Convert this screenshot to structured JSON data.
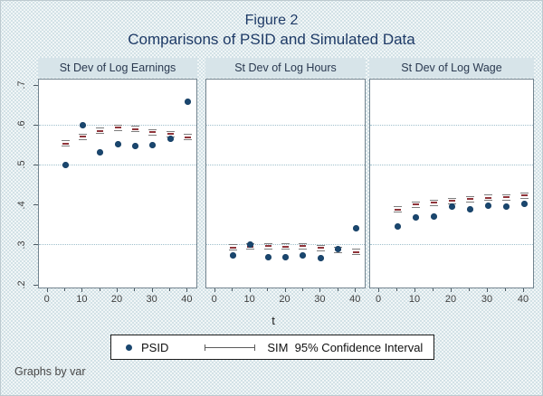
{
  "figure": {
    "title_line1": "Figure 2",
    "title_line2": "Comparisons of PSID and Simulated Data",
    "footer": "Graphs by var"
  },
  "legend": {
    "psid_label": "PSID",
    "sim_label": "SIM  95% Confidence Interval"
  },
  "colors": {
    "navy_dot": "#1a476f",
    "maroon_ci": "#90353b",
    "ci_cap_gray": "#7d7d7d",
    "background": "#eef3f5",
    "panel_header_bg": "#d7e4e9",
    "title_navy": "#1e3a66",
    "gridline": "#9fc0cc"
  },
  "chart_data": {
    "type": "scatter",
    "title": "Figure 2",
    "subtitle": "Comparisons of PSID and Simulated Data",
    "xlabel": "t",
    "ylabel": "",
    "xlim": [
      -2.5,
      42.5
    ],
    "ylim": [
      0.191,
      0.716
    ],
    "x_ticks": [
      0,
      10,
      20,
      30,
      40
    ],
    "x_minor_ticks": [
      5,
      15,
      25,
      35
    ],
    "y_ticks": [
      0.2,
      0.3,
      0.4,
      0.5,
      0.6,
      0.7
    ],
    "y_tick_labels": [
      ".2",
      ".3",
      ".4",
      ".5",
      ".6",
      ".7"
    ],
    "gridlines_y": [
      0.3,
      0.5,
      0.6
    ],
    "grid": "dotted horizontal",
    "legend_position": "bottom",
    "ci_halfwidth": 0.006,
    "x": [
      5,
      10,
      15,
      20,
      25,
      30,
      35,
      40
    ],
    "panels": [
      {
        "title": "St Dev of Log Earnings",
        "series": [
          {
            "name": "PSID",
            "values": [
              0.5,
              0.601,
              0.533,
              0.552,
              0.548,
              0.551,
              0.567,
              0.661
            ]
          },
          {
            "name": "SIM 95% CI",
            "values": [
              0.554,
              0.572,
              0.586,
              0.594,
              0.591,
              0.583,
              0.579,
              0.57
            ]
          }
        ]
      },
      {
        "title": "St Dev of Log Hours",
        "series": [
          {
            "name": "PSID",
            "values": [
              0.272,
              0.3,
              0.268,
              0.268,
              0.271,
              0.266,
              0.289,
              0.341
            ]
          },
          {
            "name": "SIM 95% CI",
            "values": [
              0.292,
              0.294,
              0.296,
              0.294,
              0.295,
              0.291,
              0.286,
              0.281
            ]
          }
        ]
      },
      {
        "title": "St Dev of Log Wage",
        "series": [
          {
            "name": "PSID",
            "values": [
              0.345,
              0.368,
              0.371,
              0.396,
              0.389,
              0.398,
              0.396,
              0.402
            ]
          },
          {
            "name": "SIM 95% CI",
            "values": [
              0.388,
              0.4,
              0.405,
              0.409,
              0.414,
              0.418,
              0.419,
              0.423
            ]
          }
        ]
      }
    ]
  }
}
